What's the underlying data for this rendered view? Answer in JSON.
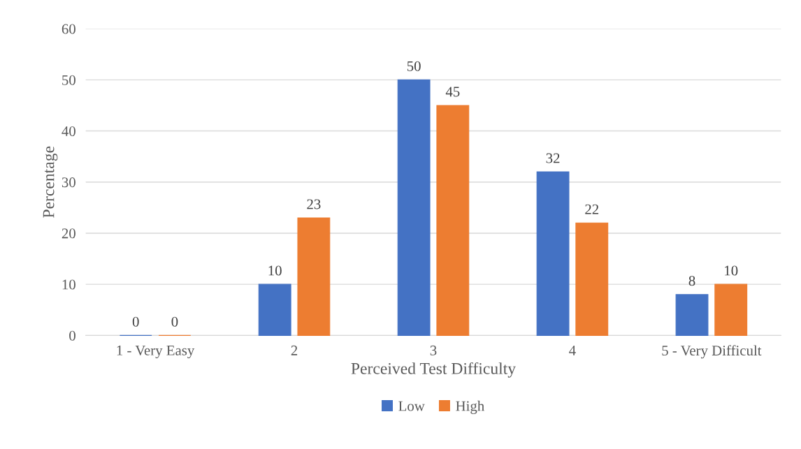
{
  "chart_data": {
    "type": "bar",
    "xlabel": "Perceived Test Difficulty",
    "ylabel": "Percentage",
    "categories": [
      "1 - Very Easy",
      "2",
      "3",
      "4",
      "5 - Very Difficult"
    ],
    "series": [
      {
        "name": "Low",
        "color": "#4472c4",
        "values": [
          0,
          10,
          50,
          32,
          8
        ]
      },
      {
        "name": "High",
        "color": "#ed7d31",
        "values": [
          0,
          23,
          45,
          22,
          10
        ]
      }
    ],
    "ylim": [
      0,
      60
    ],
    "yticks": [
      0,
      10,
      20,
      30,
      40,
      50,
      60
    ],
    "grid": "y",
    "legend": "bottom",
    "data_labels": true
  }
}
